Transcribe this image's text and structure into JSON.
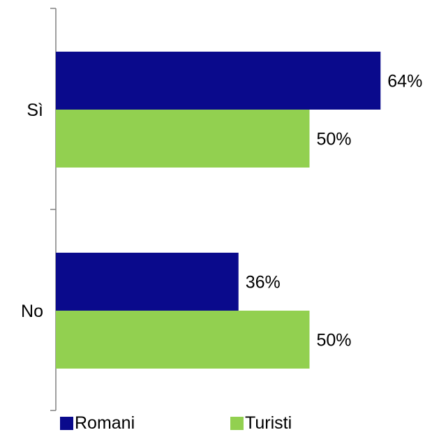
{
  "colors": {
    "romani": "#0a0a8c",
    "turisti": "#92d050",
    "axis": "#808080"
  },
  "chart_data": {
    "type": "bar",
    "orientation": "horizontal",
    "categories": [
      "Sì",
      "No"
    ],
    "series": [
      {
        "name": "Romani",
        "values": [
          64,
          36
        ],
        "labels": [
          "64%",
          "36%"
        ],
        "color": "#0a0a8c"
      },
      {
        "name": "Turisti",
        "values": [
          50,
          50
        ],
        "labels": [
          "50%",
          "50%"
        ],
        "color": "#92d050"
      }
    ],
    "xlim": [
      0,
      100
    ],
    "unit": "%",
    "title": "",
    "xlabel": "",
    "ylabel": "",
    "grid": false,
    "legend": "bottom"
  }
}
